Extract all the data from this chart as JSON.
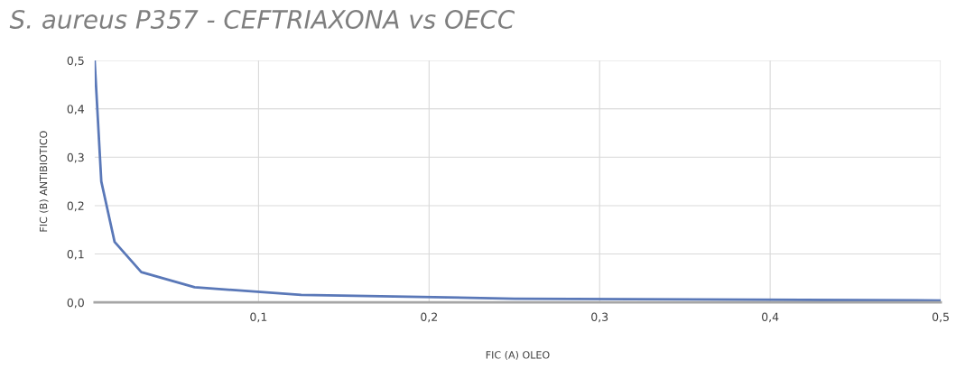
{
  "chart_data": {
    "type": "line",
    "title": "S. aureus P357 - CEFTRIAXONA vs OECC",
    "xlabel": "FIC (A) OLEO",
    "ylabel": "FIC (B) ANTIBIOTICO",
    "x": [
      0.0039,
      0.0078,
      0.0156,
      0.03125,
      0.0625,
      0.125,
      0.25,
      0.5
    ],
    "series": [
      {
        "color": "#5a78b8",
        "values": [
          0.5,
          0.25,
          0.125,
          0.0625,
          0.03125,
          0.0156,
          0.0078,
          0.0039
        ]
      }
    ],
    "xlim": [
      0.0039,
      0.5
    ],
    "ylim": [
      0,
      0.5
    ],
    "xticks": [
      {
        "value": 0.1,
        "label": "0,1"
      },
      {
        "value": 0.2,
        "label": "0,2"
      },
      {
        "value": 0.3,
        "label": "0,3"
      },
      {
        "value": 0.4,
        "label": "0,4"
      },
      {
        "value": 0.5,
        "label": "0,5"
      }
    ],
    "yticks": [
      {
        "value": 0,
        "label": "0,0"
      },
      {
        "value": 0.1,
        "label": "0,1"
      },
      {
        "value": 0.2,
        "label": "0,2"
      },
      {
        "value": 0.3,
        "label": "0,3"
      },
      {
        "value": 0.4,
        "label": "0,4"
      },
      {
        "value": 0.5,
        "label": "0,5"
      }
    ],
    "grid": true,
    "marker": "none",
    "line_style": "solid",
    "legend": false
  }
}
